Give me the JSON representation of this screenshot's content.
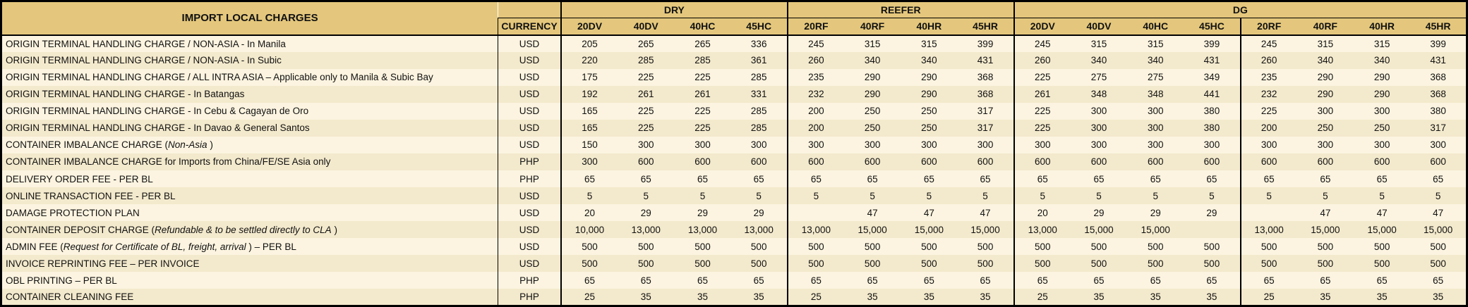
{
  "colors": {
    "header_gold": "#e4c77c",
    "row_light": "#fcf4e0",
    "row_dark": "#f3e9cc",
    "border": "#000000",
    "text": "#111111"
  },
  "table": {
    "title": "IMPORT LOCAL CHARGES",
    "currency_header": "CURRENCY",
    "groups": [
      {
        "label": "DRY",
        "span": 4
      },
      {
        "label": "REEFER",
        "span": 4
      },
      {
        "label": "DG",
        "span": 8
      }
    ],
    "columns": [
      "20DV",
      "40DV",
      "40HC",
      "45HC",
      "20RF",
      "40RF",
      "40HR",
      "45HR",
      "20DV",
      "40DV",
      "40HC",
      "45HC",
      "20RF",
      "40RF",
      "40HR",
      "45HR"
    ],
    "rows": [
      {
        "label_parts": [
          {
            "t": "ORIGIN TERMINAL HANDLING CHARGE / NON-ASIA - In Manila",
            "i": false
          }
        ],
        "currency": "USD",
        "values": [
          "205",
          "265",
          "265",
          "336",
          "245",
          "315",
          "315",
          "399",
          "245",
          "315",
          "315",
          "399",
          "245",
          "315",
          "315",
          "399"
        ]
      },
      {
        "label_parts": [
          {
            "t": "ORIGIN TERMINAL HANDLING CHARGE / NON-ASIA - In Subic",
            "i": false
          }
        ],
        "currency": "USD",
        "values": [
          "220",
          "285",
          "285",
          "361",
          "260",
          "340",
          "340",
          "431",
          "260",
          "340",
          "340",
          "431",
          "260",
          "340",
          "340",
          "431"
        ]
      },
      {
        "label_parts": [
          {
            "t": "ORIGIN TERMINAL HANDLING CHARGE / ALL INTRA ASIA – Applicable only to Manila & Subic Bay",
            "i": false
          }
        ],
        "currency": "USD",
        "values": [
          "175",
          "225",
          "225",
          "285",
          "235",
          "290",
          "290",
          "368",
          "225",
          "275",
          "275",
          "349",
          "235",
          "290",
          "290",
          "368"
        ]
      },
      {
        "label_parts": [
          {
            "t": "ORIGIN TERMINAL HANDLING CHARGE - In Batangas",
            "i": false
          }
        ],
        "currency": "USD",
        "values": [
          "192",
          "261",
          "261",
          "331",
          "232",
          "290",
          "290",
          "368",
          "261",
          "348",
          "348",
          "441",
          "232",
          "290",
          "290",
          "368"
        ]
      },
      {
        "label_parts": [
          {
            "t": "ORIGIN TERMINAL HANDLING CHARGE - In Cebu & Cagayan de Oro",
            "i": false
          }
        ],
        "currency": "USD",
        "values": [
          "165",
          "225",
          "225",
          "285",
          "200",
          "250",
          "250",
          "317",
          "225",
          "300",
          "300",
          "380",
          "225",
          "300",
          "300",
          "380"
        ]
      },
      {
        "label_parts": [
          {
            "t": "ORIGIN TERMINAL HANDLING CHARGE - In Davao & General Santos",
            "i": false
          }
        ],
        "currency": "USD",
        "values": [
          "165",
          "225",
          "225",
          "285",
          "200",
          "250",
          "250",
          "317",
          "225",
          "300",
          "300",
          "380",
          "200",
          "250",
          "250",
          "317"
        ]
      },
      {
        "label_parts": [
          {
            "t": "CONTAINER IMBALANCE CHARGE (",
            "i": false
          },
          {
            "t": "Non-Asia",
            "i": true
          },
          {
            "t": " )",
            "i": false
          }
        ],
        "currency": "USD",
        "values": [
          "150",
          "300",
          "300",
          "300",
          "300",
          "300",
          "300",
          "300",
          "300",
          "300",
          "300",
          "300",
          "300",
          "300",
          "300",
          "300"
        ]
      },
      {
        "label_parts": [
          {
            "t": "CONTAINER IMBALANCE CHARGE for Imports from China/FE/SE Asia only",
            "i": false
          }
        ],
        "currency": "PHP",
        "values": [
          "300",
          "600",
          "600",
          "600",
          "600",
          "600",
          "600",
          "600",
          "600",
          "600",
          "600",
          "600",
          "600",
          "600",
          "600",
          "600"
        ]
      },
      {
        "label_parts": [
          {
            "t": "DELIVERY ORDER FEE - PER BL",
            "i": false
          }
        ],
        "currency": "PHP",
        "values": [
          "65",
          "65",
          "65",
          "65",
          "65",
          "65",
          "65",
          "65",
          "65",
          "65",
          "65",
          "65",
          "65",
          "65",
          "65",
          "65"
        ]
      },
      {
        "label_parts": [
          {
            "t": "ONLINE TRANSACTION FEE - PER BL",
            "i": false
          }
        ],
        "currency": "USD",
        "values": [
          "5",
          "5",
          "5",
          "5",
          "5",
          "5",
          "5",
          "5",
          "5",
          "5",
          "5",
          "5",
          "5",
          "5",
          "5",
          "5"
        ]
      },
      {
        "label_parts": [
          {
            "t": "DAMAGE PROTECTION PLAN",
            "i": false
          }
        ],
        "currency": "USD",
        "values": [
          "20",
          "29",
          "29",
          "29",
          "",
          "47",
          "47",
          "47",
          "20",
          "29",
          "29",
          "29",
          "",
          "47",
          "47",
          "47"
        ]
      },
      {
        "label_parts": [
          {
            "t": "CONTAINER DEPOSIT CHARGE (",
            "i": false
          },
          {
            "t": "Refundable & to be settled directly to CLA",
            "i": true
          },
          {
            "t": " )",
            "i": false
          }
        ],
        "currency": "USD",
        "values": [
          "10,000",
          "13,000",
          "13,000",
          "13,000",
          "13,000",
          "15,000",
          "15,000",
          "15,000",
          "13,000",
          "15,000",
          "15,000",
          "",
          "13,000",
          "15,000",
          "15,000",
          "15,000"
        ]
      },
      {
        "label_parts": [
          {
            "t": "ADMIN FEE (",
            "i": false
          },
          {
            "t": "Request for Certificate of BL, freight, arrival",
            "i": true
          },
          {
            "t": " ) – PER BL",
            "i": false
          }
        ],
        "currency": "USD",
        "values": [
          "500",
          "500",
          "500",
          "500",
          "500",
          "500",
          "500",
          "500",
          "500",
          "500",
          "500",
          "500",
          "500",
          "500",
          "500",
          "500"
        ]
      },
      {
        "label_parts": [
          {
            "t": "INVOICE REPRINTING FEE – PER INVOICE",
            "i": false
          }
        ],
        "currency": "USD",
        "values": [
          "500",
          "500",
          "500",
          "500",
          "500",
          "500",
          "500",
          "500",
          "500",
          "500",
          "500",
          "500",
          "500",
          "500",
          "500",
          "500"
        ]
      },
      {
        "label_parts": [
          {
            "t": "OBL PRINTING – PER BL",
            "i": false
          }
        ],
        "currency": "PHP",
        "values": [
          "65",
          "65",
          "65",
          "65",
          "65",
          "65",
          "65",
          "65",
          "65",
          "65",
          "65",
          "65",
          "65",
          "65",
          "65",
          "65"
        ]
      },
      {
        "label_parts": [
          {
            "t": "CONTAINER CLEANING FEE",
            "i": false
          }
        ],
        "currency": "PHP",
        "values": [
          "25",
          "35",
          "35",
          "35",
          "25",
          "35",
          "35",
          "35",
          "25",
          "35",
          "35",
          "35",
          "25",
          "35",
          "35",
          "35"
        ]
      }
    ]
  }
}
